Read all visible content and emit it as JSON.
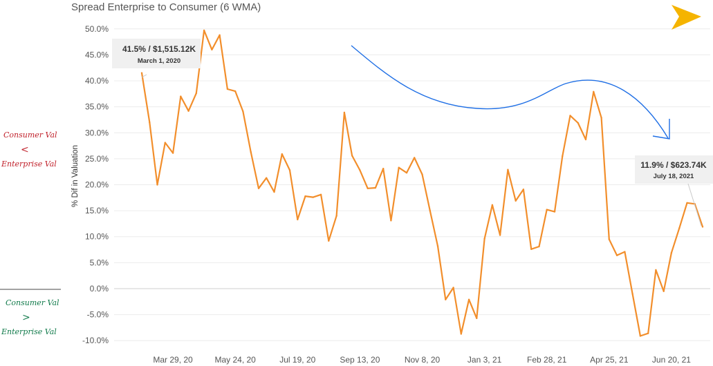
{
  "chart_data": {
    "type": "line",
    "title": "Spread Enterprise to Consumer (6 WMA)",
    "ylabel": "% Dif in Valuation",
    "xlabel": "",
    "ylim": [
      -0.105,
      0.505
    ],
    "grid": true,
    "yticks": [
      {
        "value": 0.5,
        "label": "50.0%"
      },
      {
        "value": 0.45,
        "label": "45.0%"
      },
      {
        "value": 0.4,
        "label": "40.0%"
      },
      {
        "value": 0.35,
        "label": "35.0%"
      },
      {
        "value": 0.3,
        "label": "30.0%"
      },
      {
        "value": 0.25,
        "label": "25.0%"
      },
      {
        "value": 0.2,
        "label": "20.0%"
      },
      {
        "value": 0.15,
        "label": "15.0%"
      },
      {
        "value": 0.1,
        "label": "10.0%"
      },
      {
        "value": 0.05,
        "label": "5.0%"
      },
      {
        "value": 0.0,
        "label": "0.0%"
      },
      {
        "value": -0.05,
        "label": "-5.0%"
      },
      {
        "value": -0.1,
        "label": "-10.0%"
      }
    ],
    "xticks": [
      {
        "date": "2020-03-29",
        "label": "Mar 29, 20"
      },
      {
        "date": "2020-05-24",
        "label": "May 24, 20"
      },
      {
        "date": "2020-07-19",
        "label": "Jul 19, 20"
      },
      {
        "date": "2020-09-13",
        "label": "Sep 13, 20"
      },
      {
        "date": "2020-11-08",
        "label": "Nov 8, 20"
      },
      {
        "date": "2021-01-03",
        "label": "Jan 3, 21"
      },
      {
        "date": "2021-02-28",
        "label": "Feb 28, 21"
      },
      {
        "date": "2021-04-25",
        "label": "Apr 25, 21"
      },
      {
        "date": "2021-06-20",
        "label": "Jun 20, 21"
      }
    ],
    "series": [
      {
        "color": "#f28e2b",
        "points": [
          [
            "2020-03-01",
            0.415
          ],
          [
            "2020-03-08",
            0.32
          ],
          [
            "2020-03-15",
            0.2
          ],
          [
            "2020-03-22",
            0.281
          ],
          [
            "2020-03-29",
            0.261
          ],
          [
            "2020-04-05",
            0.37
          ],
          [
            "2020-04-12",
            0.342
          ],
          [
            "2020-04-19",
            0.376
          ],
          [
            "2020-04-26",
            0.497
          ],
          [
            "2020-05-03",
            0.46
          ],
          [
            "2020-05-10",
            0.488
          ],
          [
            "2020-05-17",
            0.384
          ],
          [
            "2020-05-24",
            0.38
          ],
          [
            "2020-05-31",
            0.341
          ],
          [
            "2020-06-07",
            0.263
          ],
          [
            "2020-06-14",
            0.193
          ],
          [
            "2020-06-21",
            0.213
          ],
          [
            "2020-06-28",
            0.186
          ],
          [
            "2020-07-05",
            0.259
          ],
          [
            "2020-07-12",
            0.228
          ],
          [
            "2020-07-19",
            0.133
          ],
          [
            "2020-07-26",
            0.178
          ],
          [
            "2020-08-02",
            0.176
          ],
          [
            "2020-08-09",
            0.181
          ],
          [
            "2020-08-16",
            0.092
          ],
          [
            "2020-08-23",
            0.14
          ],
          [
            "2020-08-30",
            0.339
          ],
          [
            "2020-09-06",
            0.256
          ],
          [
            "2020-09-13",
            0.228
          ],
          [
            "2020-09-20",
            0.193
          ],
          [
            "2020-09-27",
            0.194
          ],
          [
            "2020-10-04",
            0.231
          ],
          [
            "2020-10-11",
            0.131
          ],
          [
            "2020-10-18",
            0.233
          ],
          [
            "2020-10-25",
            0.223
          ],
          [
            "2020-11-01",
            0.252
          ],
          [
            "2020-11-08",
            0.22
          ],
          [
            "2020-11-15",
            0.15
          ],
          [
            "2020-11-22",
            0.082
          ],
          [
            "2020-11-29",
            -0.021
          ],
          [
            "2020-12-06",
            0.002
          ],
          [
            "2020-12-13",
            -0.087
          ],
          [
            "2020-12-20",
            -0.021
          ],
          [
            "2020-12-27",
            -0.057
          ],
          [
            "2021-01-03",
            0.096
          ],
          [
            "2021-01-10",
            0.161
          ],
          [
            "2021-01-17",
            0.103
          ],
          [
            "2021-01-24",
            0.229
          ],
          [
            "2021-01-31",
            0.169
          ],
          [
            "2021-02-07",
            0.191
          ],
          [
            "2021-02-14",
            0.076
          ],
          [
            "2021-02-21",
            0.081
          ],
          [
            "2021-02-28",
            0.152
          ],
          [
            "2021-03-07",
            0.148
          ],
          [
            "2021-03-14",
            0.255
          ],
          [
            "2021-03-21",
            0.333
          ],
          [
            "2021-03-28",
            0.319
          ],
          [
            "2021-04-04",
            0.287
          ],
          [
            "2021-04-11",
            0.379
          ],
          [
            "2021-04-18",
            0.329
          ],
          [
            "2021-04-25",
            0.095
          ],
          [
            "2021-05-02",
            0.064
          ],
          [
            "2021-05-09",
            0.071
          ],
          [
            "2021-05-16",
            -0.01
          ],
          [
            "2021-05-23",
            -0.091
          ],
          [
            "2021-05-30",
            -0.086
          ],
          [
            "2021-06-06",
            0.036
          ],
          [
            "2021-06-13",
            -0.005
          ],
          [
            "2021-06-20",
            0.069
          ],
          [
            "2021-06-27",
            0.116
          ],
          [
            "2021-07-04",
            0.165
          ],
          [
            "2021-07-11",
            0.163
          ],
          [
            "2021-07-18",
            0.119
          ]
        ]
      }
    ],
    "annotations": [
      {
        "main": "41.5% / $1,515.12K",
        "date": "March 1, 2020",
        "anchor_date": "2020-03-01",
        "anchor_value": 0.415
      },
      {
        "main": "11.9% / $623.74K",
        "date": "July 18, 2021",
        "anchor_date": "2021-07-18",
        "anchor_value": 0.119
      }
    ]
  },
  "notes": {
    "upper": [
      "Consumer Val",
      "<",
      "Enterprise Val"
    ],
    "lower": [
      "Consumer Val",
      ">",
      "Enterprise Val"
    ]
  },
  "colors": {
    "series": "#f28e2b",
    "logo": "#f5b400",
    "trend_arrow": "#1f6fe5",
    "note_red": "#c0202a",
    "note_green": "#107a4a"
  },
  "icons": {
    "logo": "chevron-right-logo",
    "trend": "curved-trend-arrow"
  }
}
